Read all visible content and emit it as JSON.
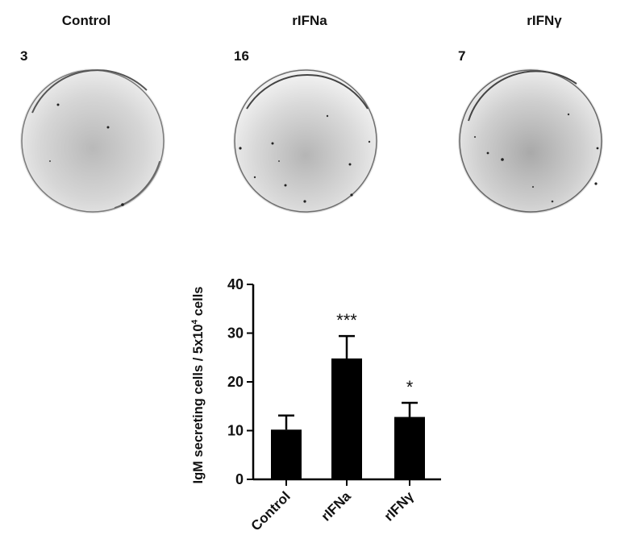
{
  "wells": [
    {
      "label": "Control",
      "count": "3"
    },
    {
      "label": "rIFNa",
      "count": "16"
    },
    {
      "label": "rIFNγ",
      "count": "7"
    }
  ],
  "chart_data": {
    "type": "bar",
    "categories": [
      "Control",
      "rIFNa",
      "rIFNγ"
    ],
    "values": [
      10.2,
      24.8,
      12.8
    ],
    "errors": [
      2.9,
      4.6,
      2.9
    ],
    "significance": [
      "",
      "***",
      "*"
    ],
    "ylabel_main": "IgM secreting cells / 5x10",
    "ylabel_sup": "4",
    "ylabel_tail": " cells",
    "ylim": [
      0,
      40
    ],
    "yticks": [
      "0",
      "10",
      "20",
      "30",
      "40"
    ],
    "bar_color": "#000000",
    "grid": false
  }
}
